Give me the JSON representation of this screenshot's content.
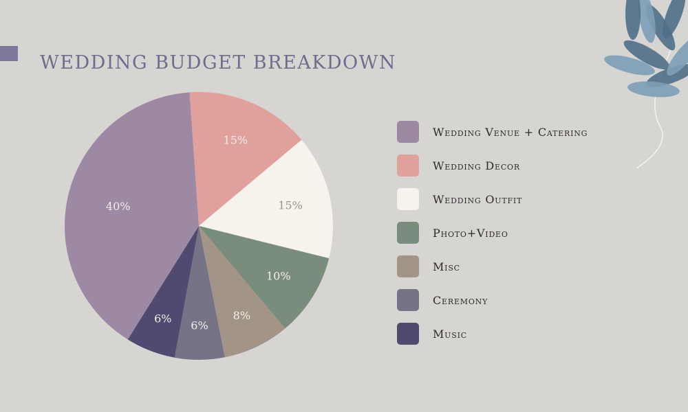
{
  "header": {
    "title": "WEDDING BUDGET BREAKDOWN"
  },
  "colors": {
    "background": "#d6d5d2",
    "title": "#6f6c8c",
    "title_accent_bar": "#7c7a98",
    "pie_label": "#f3efe9",
    "pie_label_on_light": "#9a948c",
    "leaf": "#4f6f88",
    "leaf_light": "#7d9fb6",
    "stem": "#f5f3ee"
  },
  "decoration": {
    "corner": "blue-leaf-branch-illustration"
  },
  "chart_data": {
    "type": "pie",
    "title": "WEDDING BUDGET BREAKDOWN",
    "legend_position": "right",
    "slices": [
      {
        "label": "Wedding Venue + Catering",
        "value": 40,
        "display": "40%",
        "color": "#9d89a3"
      },
      {
        "label": "Wedding Decor",
        "value": 15,
        "display": "15%",
        "color": "#e0a19d"
      },
      {
        "label": "Wedding Outfit",
        "value": 15,
        "display": "15%",
        "color": "#f6f2ec"
      },
      {
        "label": "Photo+Video",
        "value": 10,
        "display": "10%",
        "color": "#7a8c7b"
      },
      {
        "label": "Misc",
        "value": 8,
        "display": "8%",
        "color": "#a29486"
      },
      {
        "label": "Ceremony",
        "value": 6,
        "display": "6%",
        "color": "#777387"
      },
      {
        "label": "Music",
        "value": 6,
        "display": "6%",
        "color": "#514a70"
      }
    ]
  }
}
